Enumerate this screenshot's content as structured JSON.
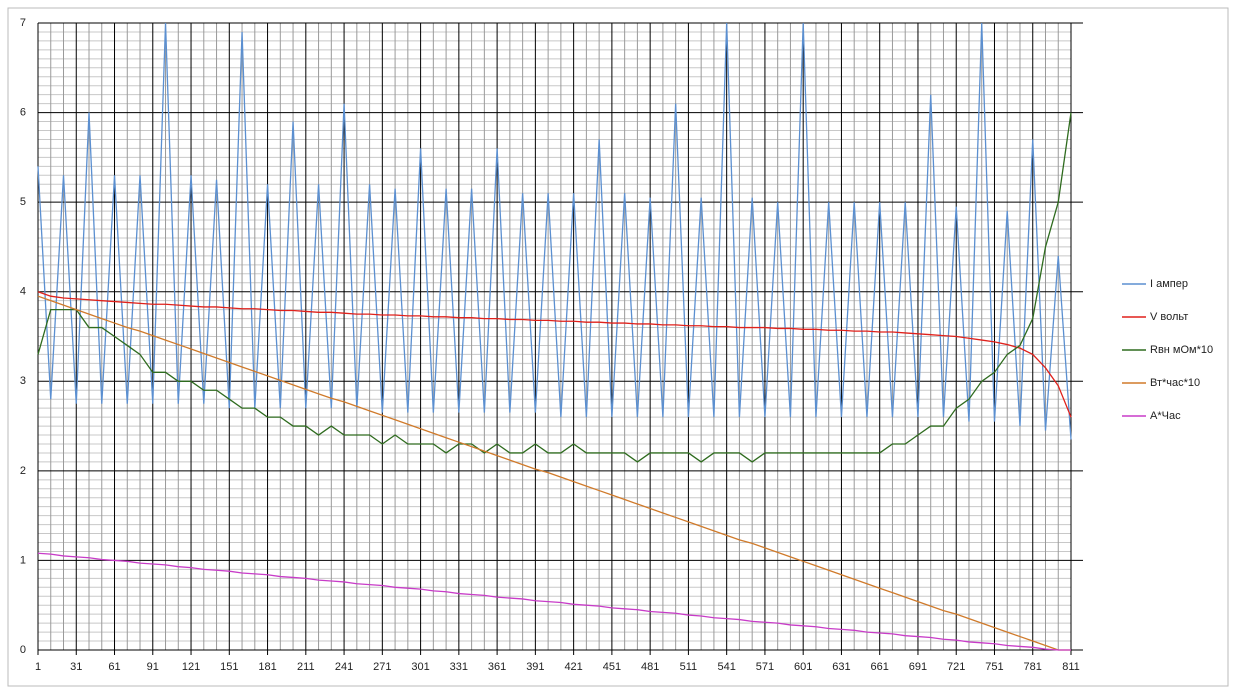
{
  "chart_data": {
    "type": "line",
    "x": [
      1,
      11,
      21,
      31,
      41,
      51,
      61,
      71,
      81,
      91,
      101,
      111,
      121,
      131,
      141,
      151,
      161,
      171,
      181,
      191,
      201,
      211,
      221,
      231,
      241,
      251,
      261,
      271,
      281,
      291,
      301,
      311,
      321,
      331,
      341,
      351,
      361,
      371,
      381,
      391,
      401,
      411,
      421,
      431,
      441,
      451,
      461,
      471,
      481,
      491,
      501,
      511,
      521,
      531,
      541,
      551,
      561,
      571,
      581,
      591,
      601,
      611,
      621,
      631,
      641,
      651,
      661,
      671,
      681,
      691,
      701,
      711,
      721,
      731,
      741,
      751,
      761,
      771,
      781,
      791,
      801,
      811
    ],
    "xlim": [
      1,
      811
    ],
    "xticks": [
      1,
      31,
      61,
      91,
      121,
      151,
      181,
      211,
      241,
      271,
      301,
      331,
      361,
      391,
      421,
      451,
      481,
      511,
      541,
      571,
      601,
      631,
      661,
      691,
      721,
      751,
      781,
      811
    ],
    "ylim": [
      0,
      7
    ],
    "yticks": [
      0,
      1,
      2,
      3,
      4,
      5,
      6,
      7
    ],
    "grid": true,
    "legend": "right",
    "series": [
      {
        "name": "I ампер",
        "color": "#5b8fd0",
        "values": [
          5.4,
          2.8,
          5.3,
          2.75,
          6.0,
          2.75,
          5.3,
          2.75,
          5.3,
          2.75,
          7.0,
          2.75,
          5.3,
          2.75,
          5.25,
          2.7,
          6.9,
          2.7,
          5.2,
          2.7,
          5.9,
          2.7,
          5.2,
          2.7,
          6.1,
          2.7,
          5.2,
          2.65,
          5.15,
          2.65,
          5.6,
          2.65,
          5.15,
          2.65,
          5.15,
          2.65,
          5.6,
          2.65,
          5.1,
          2.65,
          5.1,
          2.6,
          5.1,
          2.6,
          5.7,
          2.6,
          5.1,
          2.6,
          5.05,
          2.6,
          6.1,
          2.6,
          5.05,
          2.6,
          7.0,
          2.6,
          5.05,
          2.6,
          5.0,
          2.6,
          7.0,
          2.6,
          5.0,
          2.6,
          5.0,
          2.6,
          5.0,
          2.6,
          5.0,
          2.6,
          6.2,
          2.6,
          4.95,
          2.55,
          7.0,
          2.55,
          4.9,
          2.5,
          5.7,
          2.45,
          4.4,
          2.35
        ]
      },
      {
        "name": "V вольт",
        "color": "#e0211b",
        "values": [
          4.0,
          3.95,
          3.93,
          3.92,
          3.91,
          3.9,
          3.89,
          3.88,
          3.87,
          3.86,
          3.86,
          3.85,
          3.84,
          3.83,
          3.83,
          3.82,
          3.81,
          3.81,
          3.8,
          3.79,
          3.79,
          3.78,
          3.77,
          3.77,
          3.76,
          3.75,
          3.75,
          3.74,
          3.74,
          3.73,
          3.73,
          3.72,
          3.72,
          3.71,
          3.71,
          3.7,
          3.7,
          3.69,
          3.69,
          3.68,
          3.68,
          3.67,
          3.67,
          3.66,
          3.66,
          3.65,
          3.65,
          3.64,
          3.64,
          3.63,
          3.63,
          3.62,
          3.62,
          3.61,
          3.61,
          3.6,
          3.6,
          3.6,
          3.59,
          3.59,
          3.58,
          3.58,
          3.57,
          3.57,
          3.56,
          3.56,
          3.55,
          3.55,
          3.54,
          3.53,
          3.52,
          3.51,
          3.5,
          3.48,
          3.46,
          3.44,
          3.41,
          3.37,
          3.3,
          3.15,
          2.95,
          2.6
        ]
      },
      {
        "name": "Rвн мОм*10",
        "color": "#2e6b1e",
        "values": [
          3.3,
          3.8,
          3.8,
          3.8,
          3.6,
          3.6,
          3.5,
          3.4,
          3.3,
          3.1,
          3.1,
          3.0,
          3.0,
          2.9,
          2.9,
          2.8,
          2.7,
          2.7,
          2.6,
          2.6,
          2.5,
          2.5,
          2.4,
          2.5,
          2.4,
          2.4,
          2.4,
          2.3,
          2.4,
          2.3,
          2.3,
          2.3,
          2.2,
          2.3,
          2.3,
          2.2,
          2.3,
          2.2,
          2.2,
          2.3,
          2.2,
          2.2,
          2.3,
          2.2,
          2.2,
          2.2,
          2.2,
          2.1,
          2.2,
          2.2,
          2.2,
          2.2,
          2.1,
          2.2,
          2.2,
          2.2,
          2.1,
          2.2,
          2.2,
          2.2,
          2.2,
          2.2,
          2.2,
          2.2,
          2.2,
          2.2,
          2.2,
          2.3,
          2.3,
          2.4,
          2.5,
          2.5,
          2.7,
          2.8,
          3.0,
          3.1,
          3.3,
          3.4,
          3.7,
          4.5,
          5.0,
          6.0
        ]
      },
      {
        "name": "Вт*час*10",
        "color": "#d07a2a",
        "values": [
          3.95,
          3.9,
          3.85,
          3.8,
          3.75,
          3.7,
          3.65,
          3.6,
          3.56,
          3.51,
          3.46,
          3.41,
          3.36,
          3.31,
          3.26,
          3.21,
          3.16,
          3.11,
          3.06,
          3.01,
          2.96,
          2.91,
          2.86,
          2.81,
          2.77,
          2.72,
          2.67,
          2.62,
          2.57,
          2.52,
          2.47,
          2.42,
          2.37,
          2.32,
          2.27,
          2.22,
          2.17,
          2.12,
          2.07,
          2.02,
          1.98,
          1.93,
          1.88,
          1.83,
          1.78,
          1.73,
          1.68,
          1.63,
          1.58,
          1.53,
          1.48,
          1.43,
          1.38,
          1.33,
          1.28,
          1.23,
          1.19,
          1.14,
          1.09,
          1.04,
          0.99,
          0.94,
          0.89,
          0.84,
          0.79,
          0.74,
          0.69,
          0.64,
          0.59,
          0.54,
          0.49,
          0.44,
          0.4,
          0.35,
          0.3,
          0.25,
          0.2,
          0.15,
          0.1,
          0.05,
          0,
          0
        ]
      },
      {
        "name": "А*Час",
        "color": "#c83cc8",
        "values": [
          1.08,
          1.07,
          1.05,
          1.04,
          1.03,
          1.01,
          1,
          0.99,
          0.97,
          0.96,
          0.95,
          0.93,
          0.92,
          0.9,
          0.89,
          0.88,
          0.86,
          0.85,
          0.84,
          0.82,
          0.81,
          0.8,
          0.78,
          0.77,
          0.76,
          0.74,
          0.73,
          0.72,
          0.7,
          0.69,
          0.68,
          0.66,
          0.65,
          0.63,
          0.62,
          0.61,
          0.59,
          0.58,
          0.57,
          0.55,
          0.54,
          0.53,
          0.51,
          0.5,
          0.49,
          0.47,
          0.46,
          0.45,
          0.43,
          0.42,
          0.41,
          0.39,
          0.38,
          0.36,
          0.35,
          0.34,
          0.32,
          0.31,
          0.3,
          0.28,
          0.27,
          0.26,
          0.24,
          0.23,
          0.22,
          0.2,
          0.19,
          0.18,
          0.16,
          0.15,
          0.14,
          0.12,
          0.11,
          0.09,
          0.08,
          0.07,
          0.05,
          0.04,
          0.03,
          0.01,
          0,
          0
        ]
      }
    ]
  }
}
